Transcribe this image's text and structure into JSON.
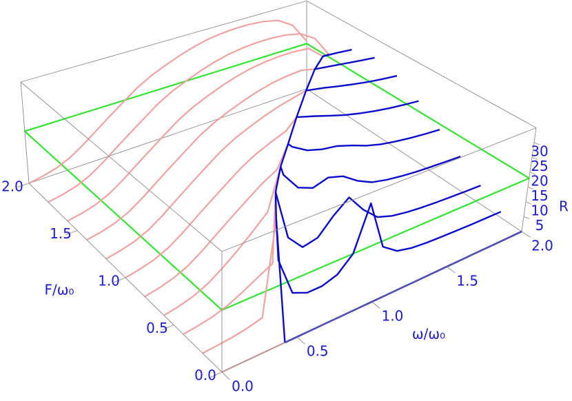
{
  "chart_data": {
    "type": "line3d",
    "xlabel": "ω/ω₀",
    "ylabel": "F/ω₀",
    "zlabel": "R",
    "xlim": [
      0,
      2
    ],
    "ylim": [
      0,
      2
    ],
    "zlim": [
      0,
      35
    ],
    "xticks": [
      {
        "value": 0,
        "label": "0.0"
      },
      {
        "value": 0.5,
        "label": "0.5"
      },
      {
        "value": 1,
        "label": "1.0"
      },
      {
        "value": 1.5,
        "label": "1.5"
      },
      {
        "value": 2,
        "label": "2.0"
      }
    ],
    "yticks": [
      {
        "value": 0,
        "label": "0.0"
      },
      {
        "value": 0.5,
        "label": "0.5"
      },
      {
        "value": 1,
        "label": "1.0"
      },
      {
        "value": 1.5,
        "label": "1.5"
      },
      {
        "value": 2,
        "label": "2.0"
      }
    ],
    "zticks": [
      5,
      10,
      15,
      20,
      25,
      30
    ],
    "plane_R": 18,
    "colors": {
      "lower": "#f2a0a0",
      "upper": "#0a0acc",
      "boundary": "#0a0acc",
      "plane": "#2ee62e"
    },
    "omega": [
      0,
      0.1,
      0.2,
      0.3,
      0.4,
      0.5,
      0.6,
      0.7,
      0.8,
      0.9,
      1.0,
      1.1,
      1.2,
      1.3,
      1.4,
      1.5,
      1.6,
      1.7,
      1.8,
      1.9,
      2.0
    ],
    "curves": [
      {
        "F": 0,
        "omega_b": 0.42,
        "R_b": 0,
        "lower": [
          0,
          0,
          0,
          0,
          0,
          null,
          null,
          null,
          null,
          null,
          null,
          null,
          null,
          null,
          null,
          null,
          null,
          null,
          null,
          null,
          null
        ],
        "upper": [
          null,
          null,
          null,
          null,
          null,
          0,
          0,
          0,
          0,
          0,
          0,
          0,
          0,
          0,
          0,
          0,
          0,
          0,
          0,
          0,
          0
        ]
      },
      {
        "F": 0.2,
        "omega_b": 0.48,
        "R_b": 31,
        "lower": [
          0,
          0.3,
          0.7,
          1.4,
          2.5,
          null,
          null,
          null,
          null,
          null,
          null,
          null,
          null,
          null,
          null,
          null,
          null,
          null,
          null,
          null,
          null
        ],
        "upper": [
          null,
          null,
          null,
          null,
          null,
          18,
          6,
          4,
          4,
          5.5,
          10,
          24,
          8,
          4.5,
          3.3,
          2.8,
          2.5,
          2.3,
          2.1,
          2,
          1.9
        ]
      },
      {
        "F": 0.4,
        "omega_b": 0.61,
        "R_b": 32,
        "lower": [
          0,
          0.6,
          1.4,
          2.8,
          4.9,
          7.4,
          9.8,
          null,
          null,
          null,
          null,
          null,
          null,
          null,
          null,
          null,
          null,
          null,
          null,
          null,
          null
        ],
        "upper": [
          null,
          null,
          null,
          null,
          null,
          null,
          null,
          16,
          11,
          12,
          17,
          21,
          15,
          10.5,
          8.8,
          7.9,
          7.3,
          6.9,
          6.6,
          6.3,
          6.1
        ]
      },
      {
        "F": 0.6,
        "omega_b": 0.78,
        "R_b": 32,
        "lower": [
          0,
          0.8,
          2,
          4,
          7,
          10.5,
          14.5,
          19,
          null,
          null,
          null,
          null,
          null,
          null,
          null,
          null,
          null,
          null,
          null,
          null,
          null
        ],
        "upper": [
          null,
          null,
          null,
          null,
          null,
          null,
          null,
          null,
          29,
          23,
          21,
          22.5,
          21,
          17.5,
          15,
          13.8,
          13,
          12.4,
          12,
          11.7,
          11.4
        ]
      },
      {
        "F": 0.8,
        "omega_b": 0.97,
        "R_b": 31,
        "lower": [
          0,
          0.8,
          2,
          4,
          7,
          10.5,
          14,
          17.5,
          21,
          23.8,
          null,
          null,
          null,
          null,
          null,
          null,
          null,
          null,
          null,
          null,
          null
        ],
        "upper": [
          null,
          null,
          null,
          null,
          null,
          null,
          null,
          null,
          null,
          null,
          29.5,
          26.5,
          25,
          24.2,
          22.5,
          20.5,
          19,
          18,
          17.2,
          16.6,
          16.1
        ]
      },
      {
        "F": 1.0,
        "omega_b": 1.17,
        "R_b": 31.5,
        "lower": [
          0,
          0.8,
          2,
          4,
          7,
          10.5,
          14,
          17.5,
          21,
          23.8,
          26,
          28,
          null,
          null,
          null,
          null,
          null,
          null,
          null,
          null,
          null
        ],
        "upper": [
          null,
          null,
          null,
          null,
          null,
          null,
          null,
          null,
          null,
          null,
          null,
          null,
          31,
          29.5,
          27.8,
          26.2,
          24.9,
          23.8,
          22.9,
          22.2,
          21.6
        ]
      },
      {
        "F": 1.2,
        "omega_b": 1.38,
        "R_b": 32,
        "lower": [
          0,
          0.8,
          2,
          4,
          7,
          10.5,
          14,
          17.5,
          21,
          23.8,
          26,
          28,
          29.7,
          31,
          null,
          null,
          null,
          null,
          null,
          null,
          null
        ],
        "upper": [
          null,
          null,
          null,
          null,
          null,
          null,
          null,
          null,
          null,
          null,
          null,
          null,
          null,
          null,
          31.8,
          30.8,
          29.6,
          28.5,
          27.5,
          26.7,
          26
        ]
      },
      {
        "F": 1.4,
        "omega_b": 1.59,
        "R_b": 31,
        "lower": [
          0,
          0.8,
          2,
          4,
          7,
          10.5,
          14,
          17.5,
          21,
          23.8,
          26,
          28,
          29.7,
          31,
          31.8,
          32.2,
          null,
          null,
          null,
          null,
          null
        ],
        "upper": [
          null,
          null,
          null,
          null,
          null,
          null,
          null,
          null,
          null,
          null,
          null,
          null,
          null,
          null,
          null,
          null,
          30.9,
          30.2,
          29.4,
          28.6,
          27.9
        ]
      },
      {
        "F": 1.6,
        "omega_b": 1.8,
        "R_b": 27,
        "lower": [
          0,
          0.8,
          2,
          4,
          7,
          10.5,
          14,
          17.5,
          21,
          23.8,
          26,
          28,
          29.7,
          31,
          31.8,
          32.2,
          32.2,
          31.7,
          null,
          null,
          null
        ],
        "upper": [
          null,
          null,
          null,
          null,
          null,
          null,
          null,
          null,
          null,
          null,
          null,
          null,
          null,
          null,
          null,
          null,
          null,
          null,
          null,
          26.6,
          26
        ]
      },
      {
        "F": 1.8,
        "omega_b": 2.0,
        "R_b": 19,
        "lower": [
          0,
          0.8,
          2,
          4,
          7,
          10.5,
          14,
          17.5,
          21,
          23.8,
          26,
          28,
          29.7,
          31,
          31.8,
          32.2,
          32.2,
          31.7,
          30.5,
          27,
          null
        ],
        "upper": [
          null,
          null,
          null,
          null,
          null,
          null,
          null,
          null,
          null,
          null,
          null,
          null,
          null,
          null,
          null,
          null,
          null,
          null,
          null,
          null,
          null
        ]
      },
      {
        "F": 2.0,
        "lower": [
          0,
          0.8,
          2,
          4,
          7,
          10.5,
          14,
          17.5,
          21,
          23.8,
          26,
          28,
          29.7,
          31,
          31.8,
          32.2,
          32.2,
          31.7,
          30.5,
          27,
          19
        ],
        "upper": [
          null,
          null,
          null,
          null,
          null,
          null,
          null,
          null,
          null,
          null,
          null,
          null,
          null,
          null,
          null,
          null,
          null,
          null,
          null,
          null,
          null
        ]
      }
    ]
  }
}
